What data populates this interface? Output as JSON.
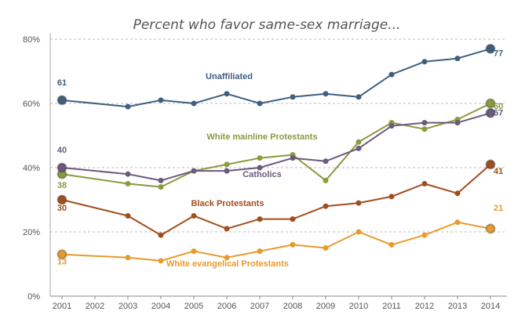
{
  "chart_data": {
    "type": "line",
    "title": "Percent who favor same-sex marriage...",
    "x": [
      "2001",
      "2002",
      "2003",
      "2004",
      "2005",
      "2006",
      "2007",
      "2008",
      "2009",
      "2010",
      "2011",
      "2012",
      "2013",
      "2014"
    ],
    "ylim": [
      0,
      80
    ],
    "yticks": [
      0,
      20,
      40,
      60,
      80
    ],
    "ytick_labels": [
      "0%",
      "20%",
      "40%",
      "60%",
      "80%"
    ],
    "xlabel": "",
    "ylabel": "",
    "grid": "dashed horizontal",
    "series": [
      {
        "name": "Unaffiliated",
        "color": "#3e5f7e",
        "values": [
          61,
          null,
          59,
          61,
          60,
          63,
          60,
          62,
          63,
          62,
          69,
          73,
          74,
          77
        ],
        "start_label": "61",
        "end_label": "77"
      },
      {
        "name": "White mainline Protestants",
        "color": "#8a9a3c",
        "values": [
          38,
          null,
          35,
          34,
          39,
          41,
          43,
          44,
          36,
          48,
          54,
          52,
          55,
          60
        ],
        "start_label": "38",
        "end_label": "60"
      },
      {
        "name": "Catholics",
        "color": "#6b5a7b",
        "values": [
          40,
          null,
          38,
          36,
          39,
          39,
          40,
          43,
          42,
          46,
          53,
          54,
          54,
          57
        ],
        "start_label": "40",
        "end_label": "57"
      },
      {
        "name": "Black Protestants",
        "color": "#a24e1e",
        "values": [
          30,
          null,
          25,
          19,
          25,
          21,
          24,
          24,
          28,
          29,
          31,
          35,
          32,
          41
        ],
        "start_label": "30",
        "end_label": "41"
      },
      {
        "name": "White evangelical Protestants",
        "color": "#e89a2c",
        "values": [
          13,
          null,
          12,
          11,
          14,
          12,
          14,
          16,
          15,
          20,
          16,
          19,
          23,
          21
        ],
        "start_label": "13",
        "end_label": "21"
      }
    ]
  }
}
